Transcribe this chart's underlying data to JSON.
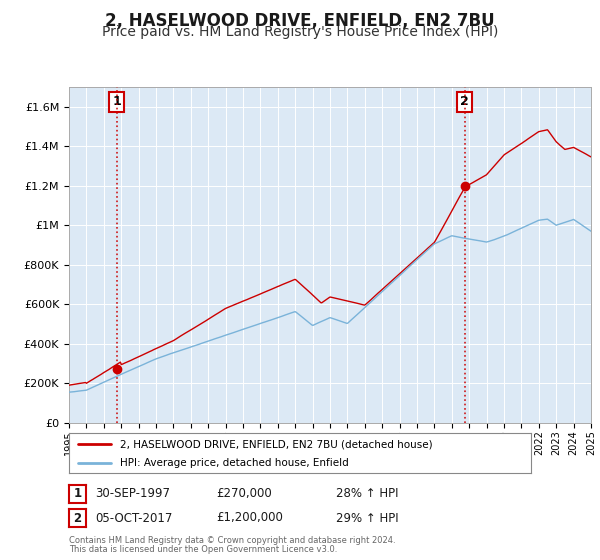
{
  "title": "2, HASELWOOD DRIVE, ENFIELD, EN2 7BU",
  "subtitle": "Price paid vs. HM Land Registry's House Price Index (HPI)",
  "title_fontsize": 12,
  "subtitle_fontsize": 10,
  "background_color": "#ffffff",
  "plot_bg_color": "#dce9f5",
  "grid_color": "#ffffff",
  "red_line_color": "#cc0000",
  "blue_line_color": "#7ab3d9",
  "sale1_year": 1997.75,
  "sale1_price": 270000,
  "sale2_year": 2017.75,
  "sale2_price": 1200000,
  "xmin": 1995,
  "xmax": 2025,
  "ymin": 0,
  "ymax": 1700000,
  "yticks": [
    0,
    200000,
    400000,
    600000,
    800000,
    1000000,
    1200000,
    1400000,
    1600000
  ],
  "ytick_labels": [
    "£0",
    "£200K",
    "£400K",
    "£600K",
    "£800K",
    "£1M",
    "£1.2M",
    "£1.4M",
    "£1.6M"
  ],
  "legend_label_red": "2, HASELWOOD DRIVE, ENFIELD, EN2 7BU (detached house)",
  "legend_label_blue": "HPI: Average price, detached house, Enfield",
  "note1_label": "1",
  "note1_date": "30-SEP-1997",
  "note1_price": "£270,000",
  "note1_hpi": "28% ↑ HPI",
  "note2_label": "2",
  "note2_date": "05-OCT-2017",
  "note2_price": "£1,200,000",
  "note2_hpi": "29% ↑ HPI",
  "footer1": "Contains HM Land Registry data © Crown copyright and database right 2024.",
  "footer2": "This data is licensed under the Open Government Licence v3.0."
}
